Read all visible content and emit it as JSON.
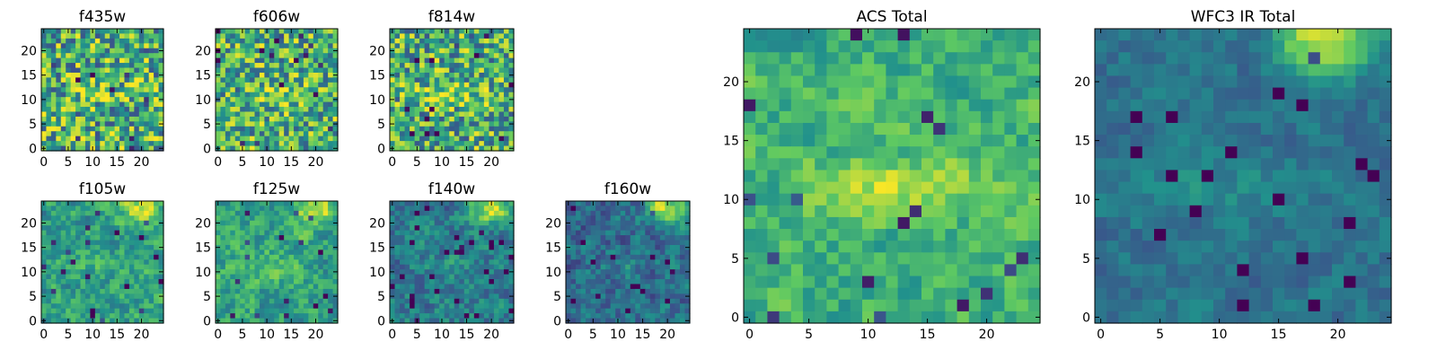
{
  "figure": {
    "colormap": "viridis",
    "colormap_stops": [
      "#440154",
      "#3b528b",
      "#21918c",
      "#5ec962",
      "#fde725"
    ]
  },
  "chart_data": [
    {
      "type": "heatmap",
      "title": "f435w",
      "grid_size": [
        25,
        25
      ],
      "xticks": [
        "0",
        "5",
        "10",
        "15",
        "20"
      ],
      "yticks": [
        "0",
        "5",
        "10",
        "15",
        "20"
      ],
      "seed": 11,
      "feature": {
        "noise": 0.35,
        "bias": 0.62,
        "band": [
          12,
          11,
          0.18
        ],
        "corner": [
          0,
          0,
          0
        ]
      }
    },
    {
      "type": "heatmap",
      "title": "f606w",
      "grid_size": [
        25,
        25
      ],
      "xticks": [
        "0",
        "5",
        "10",
        "15",
        "20"
      ],
      "yticks": [
        "0",
        "5",
        "10",
        "15",
        "20"
      ],
      "seed": 23,
      "feature": {
        "noise": 0.32,
        "bias": 0.64,
        "band": [
          12,
          11,
          0.2
        ],
        "corner": [
          0,
          0,
          0
        ]
      }
    },
    {
      "type": "heatmap",
      "title": "f814w",
      "grid_size": [
        25,
        25
      ],
      "xticks": [
        "0",
        "5",
        "10",
        "15",
        "20"
      ],
      "yticks": [
        "0",
        "5",
        "10",
        "15",
        "20"
      ],
      "seed": 37,
      "feature": {
        "noise": 0.33,
        "bias": 0.62,
        "band": [
          12,
          11,
          0.22
        ],
        "corner": [
          0,
          0,
          0
        ]
      }
    },
    {
      "type": "heatmap",
      "title": "f105w",
      "grid_size": [
        25,
        25
      ],
      "xticks": [
        "0",
        "5",
        "10",
        "15",
        "20"
      ],
      "yticks": [
        "0",
        "5",
        "10",
        "15",
        "20"
      ],
      "seed": 41,
      "feature": {
        "noise": 0.26,
        "bias": 0.56,
        "band": [
          12,
          11,
          0.1
        ],
        "corner": [
          20,
          23,
          0.35
        ]
      }
    },
    {
      "type": "heatmap",
      "title": "f125w",
      "grid_size": [
        25,
        25
      ],
      "xticks": [
        "0",
        "5",
        "10",
        "15",
        "20"
      ],
      "yticks": [
        "0",
        "5",
        "10",
        "15",
        "20"
      ],
      "seed": 53,
      "feature": {
        "noise": 0.26,
        "bias": 0.58,
        "band": [
          12,
          11,
          0.12
        ],
        "corner": [
          20,
          23,
          0.4
        ]
      }
    },
    {
      "type": "heatmap",
      "title": "f140w",
      "grid_size": [
        25,
        25
      ],
      "xticks": [
        "0",
        "5",
        "10",
        "15",
        "20"
      ],
      "yticks": [
        "0",
        "5",
        "10",
        "15",
        "20"
      ],
      "seed": 67,
      "feature": {
        "noise": 0.24,
        "bias": 0.42,
        "band": [
          12,
          11,
          0.08
        ],
        "corner": [
          20,
          23,
          0.55
        ]
      }
    },
    {
      "type": "heatmap",
      "title": "f160w",
      "grid_size": [
        25,
        25
      ],
      "xticks": [
        "0",
        "5",
        "10",
        "15",
        "20"
      ],
      "yticks": [
        "0",
        "5",
        "10",
        "15",
        "20"
      ],
      "seed": 79,
      "feature": {
        "noise": 0.24,
        "bias": 0.36,
        "band": [
          12,
          11,
          0.08
        ],
        "corner": [
          20,
          23,
          0.6
        ]
      }
    },
    {
      "type": "heatmap",
      "title": "ACS Total",
      "grid_size": [
        25,
        25
      ],
      "xticks": [
        "0",
        "5",
        "10",
        "15",
        "20"
      ],
      "yticks": [
        "0",
        "5",
        "10",
        "15",
        "20"
      ],
      "seed": 97,
      "feature": {
        "noise": 0.22,
        "bias": 0.64,
        "band": [
          12,
          11,
          0.25
        ],
        "corner": [
          0,
          0,
          0
        ]
      }
    },
    {
      "type": "heatmap",
      "title": "WFC3 IR Total",
      "grid_size": [
        25,
        25
      ],
      "xticks": [
        "0",
        "5",
        "10",
        "15",
        "20"
      ],
      "yticks": [
        "0",
        "5",
        "10",
        "15",
        "20"
      ],
      "seed": 101,
      "feature": {
        "noise": 0.14,
        "bias": 0.38,
        "band": [
          12,
          11,
          0.12
        ],
        "corner": [
          19,
          24,
          0.62
        ]
      }
    }
  ]
}
